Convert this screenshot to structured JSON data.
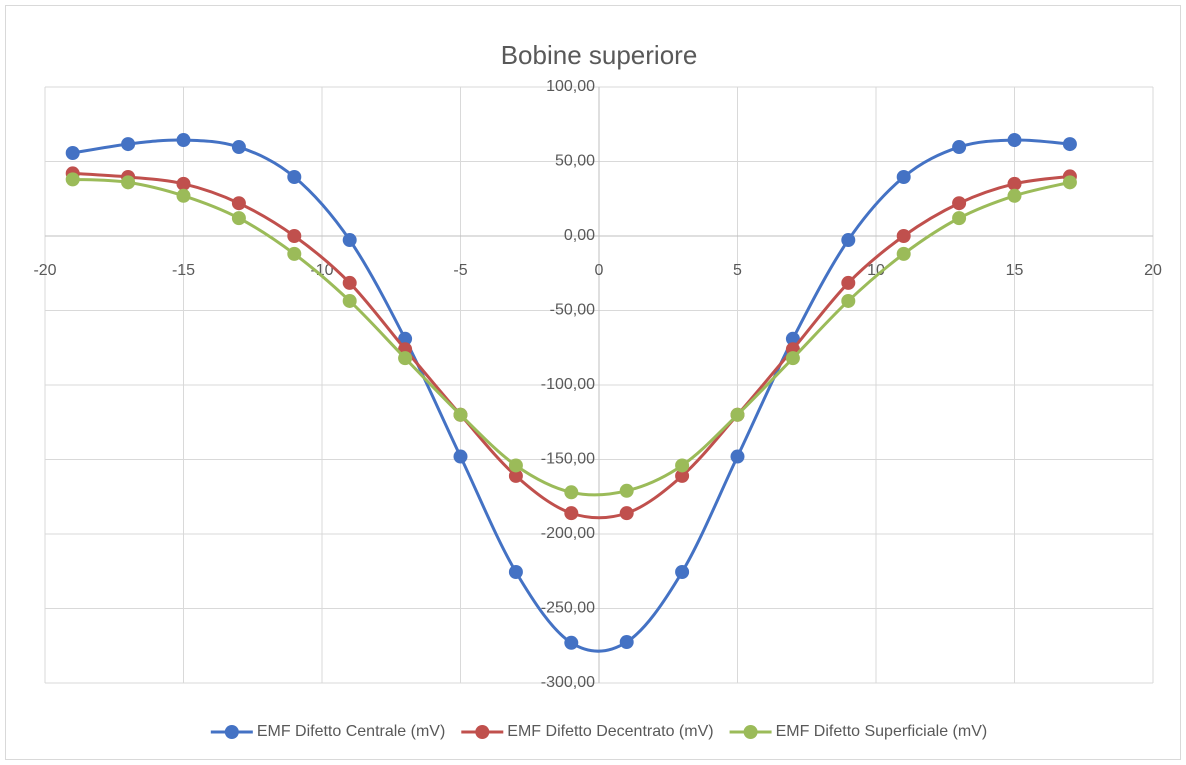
{
  "chart_data": {
    "type": "scatter-smooth",
    "title": "Bobine superiore",
    "x": [
      -19,
      -17,
      -15,
      -13,
      -11,
      -9,
      -7,
      -5,
      -3,
      -1,
      1,
      3,
      5,
      7,
      9,
      11,
      13,
      15,
      17
    ],
    "series": [
      {
        "name": "EMF Difetto Centrale (mV)",
        "color": "#4472c4",
        "values": [
          55.7,
          61.7,
          64.4,
          59.7,
          39.6,
          -2.7,
          -69,
          -148,
          -225.5,
          -273,
          -272.5,
          -225.5,
          -148,
          -69,
          -2.7,
          39.6,
          59.7,
          64.4,
          61.7
        ]
      },
      {
        "name": "EMF Difetto Decentrato (mV)",
        "color": "#c0504d",
        "values": [
          42,
          39.6,
          35,
          22,
          0,
          -31.5,
          -76,
          -120,
          -161,
          -186,
          -186,
          -161,
          -120,
          -76,
          -31.5,
          0,
          22,
          35,
          40
        ]
      },
      {
        "name": "EMF Difetto Superficiale (mV)",
        "color": "#9bbb59",
        "values": [
          38,
          36,
          27,
          12,
          -12,
          -43.6,
          -82,
          -120,
          -154,
          -172,
          -171,
          -154,
          -120,
          -82,
          -43.6,
          -12,
          12,
          27,
          36
        ]
      }
    ],
    "xlim": [
      -20,
      20
    ],
    "xticks": [
      -20,
      -15,
      -10,
      -5,
      0,
      5,
      10,
      15,
      20
    ],
    "ylim": [
      -300,
      100
    ],
    "yticks": [
      {
        "value": -300,
        "label": "-300,00"
      },
      {
        "value": -250,
        "label": "-250,00"
      },
      {
        "value": -200,
        "label": "-200,00"
      },
      {
        "value": -150,
        "label": "-150,00"
      },
      {
        "value": -100,
        "label": "-100,00"
      },
      {
        "value": -50,
        "label": "-50,00"
      },
      {
        "value": 0,
        "label": "0,00"
      },
      {
        "value": 50,
        "label": "50,00"
      },
      {
        "value": 100,
        "label": "100,00"
      }
    ],
    "grid": true,
    "legend": "bottom"
  }
}
